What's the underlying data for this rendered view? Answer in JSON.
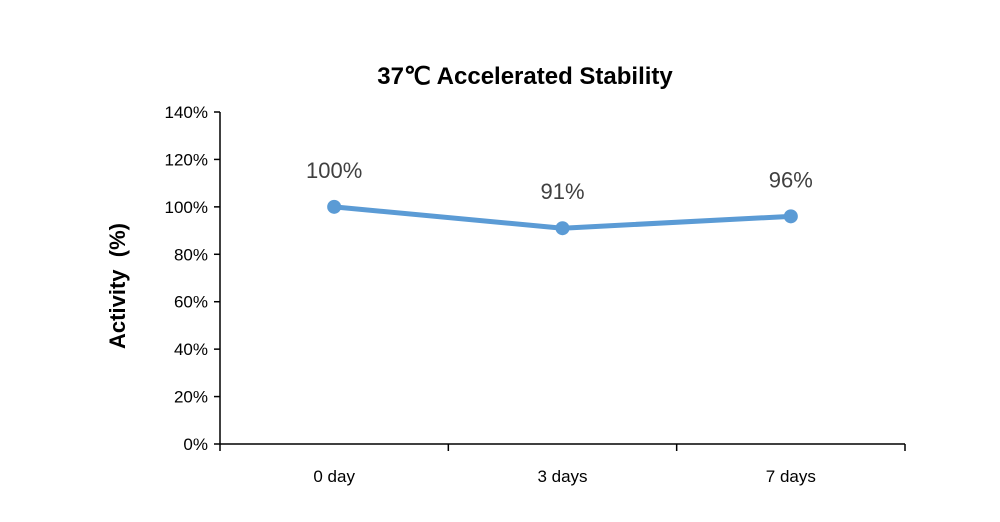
{
  "chart_data": {
    "type": "line",
    "title": "37℃ Accelerated Stability",
    "xlabel": "",
    "ylabel": "Activity  (%)",
    "categories": [
      "0 day",
      "3 days",
      "7 days"
    ],
    "series": [
      {
        "values": [
          100,
          91,
          96
        ],
        "data_labels": [
          "100%",
          "91%",
          "96%"
        ]
      }
    ],
    "ylim": [
      0,
      140
    ],
    "yticks": [
      0,
      20,
      40,
      60,
      80,
      100,
      120,
      140
    ],
    "ytick_labels": [
      "0%",
      "20%",
      "40%",
      "60%",
      "80%",
      "100%",
      "120%",
      "140%"
    ],
    "grid": false,
    "legend": "none",
    "colors": {
      "line": "#5b9bd5",
      "axis": "#000000",
      "data_label": "#404040"
    }
  }
}
